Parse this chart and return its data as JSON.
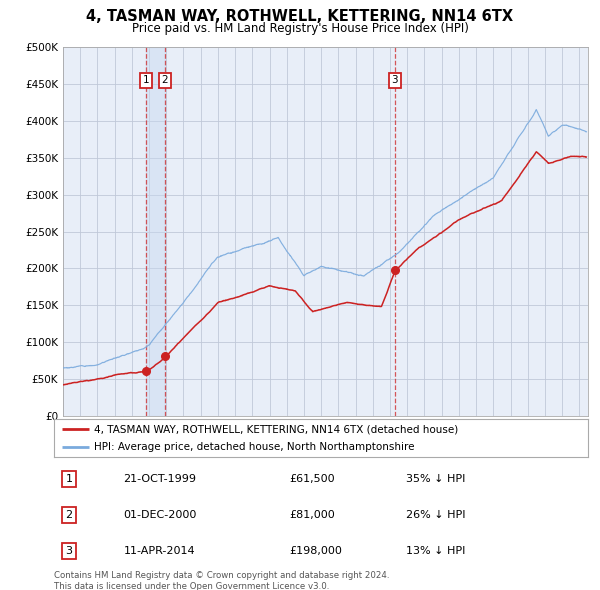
{
  "title": "4, TASMAN WAY, ROTHWELL, KETTERING, NN14 6TX",
  "subtitle": "Price paid vs. HM Land Registry's House Price Index (HPI)",
  "background_color": "#ffffff",
  "plot_bg_color": "#e8eef8",
  "grid_color": "#c0c8d8",
  "hpi_line_color": "#7aaadd",
  "price_line_color": "#cc2222",
  "sale_marker_color": "#cc2222",
  "vline_color": "#cc2222",
  "shade_color": "#c8d8f0",
  "sale_point_1": {
    "date_year": 1999.81,
    "price": 61500
  },
  "sale_point_2": {
    "date_year": 2000.92,
    "price": 81000
  },
  "sale_point_3": {
    "date_year": 2014.28,
    "price": 198000
  },
  "vline_1_x": 1999.81,
  "vline_2_x": 2000.92,
  "vline_3_x": 2014.28,
  "ylim": [
    0,
    500000
  ],
  "xlim_start": 1995.0,
  "xlim_end": 2025.5,
  "ytick_vals": [
    0,
    50000,
    100000,
    150000,
    200000,
    250000,
    300000,
    350000,
    400000,
    450000,
    500000
  ],
  "ytick_labels": [
    "£0",
    "£50K",
    "£100K",
    "£150K",
    "£200K",
    "£250K",
    "£300K",
    "£350K",
    "£400K",
    "£450K",
    "£500K"
  ],
  "xtick_vals": [
    1995,
    1996,
    1997,
    1998,
    1999,
    2000,
    2001,
    2002,
    2003,
    2004,
    2005,
    2006,
    2007,
    2008,
    2009,
    2010,
    2011,
    2012,
    2013,
    2014,
    2015,
    2016,
    2017,
    2018,
    2019,
    2020,
    2021,
    2022,
    2023,
    2024,
    2025
  ],
  "legend_entry_1": "4, TASMAN WAY, ROTHWELL, KETTERING, NN14 6TX (detached house)",
  "legend_entry_2": "HPI: Average price, detached house, North Northamptonshire",
  "table_rows": [
    {
      "num": "1",
      "date": "21-OCT-1999",
      "price": "£61,500",
      "diff": "35% ↓ HPI"
    },
    {
      "num": "2",
      "date": "01-DEC-2000",
      "price": "£81,000",
      "diff": "26% ↓ HPI"
    },
    {
      "num": "3",
      "date": "11-APR-2014",
      "price": "£198,000",
      "diff": "13% ↓ HPI"
    }
  ],
  "footnote": "Contains HM Land Registry data © Crown copyright and database right 2024.\nThis data is licensed under the Open Government Licence v3.0."
}
